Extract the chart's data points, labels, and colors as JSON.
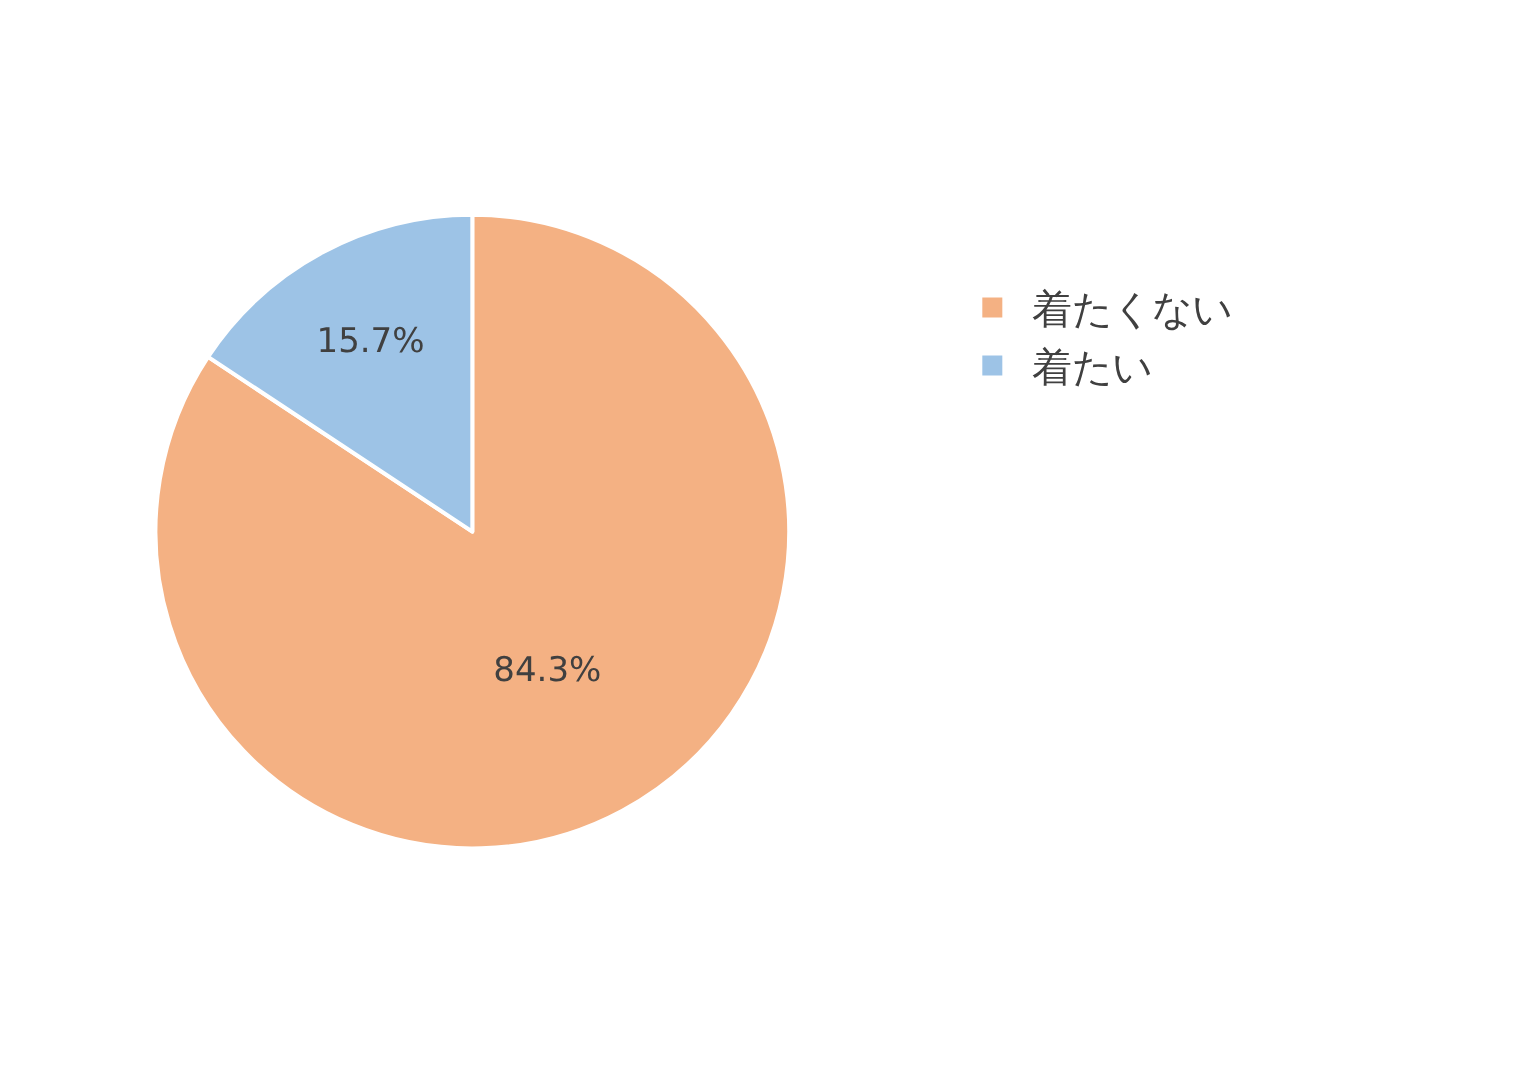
{
  "chart_data": {
    "type": "pie",
    "categories": [
      "着たくない",
      "着たい"
    ],
    "values": [
      84.3,
      15.7
    ],
    "colors": [
      "#f4b183",
      "#9dc3e6"
    ],
    "value_labels": [
      "84.3%",
      "15.7%"
    ],
    "legend": "right"
  }
}
